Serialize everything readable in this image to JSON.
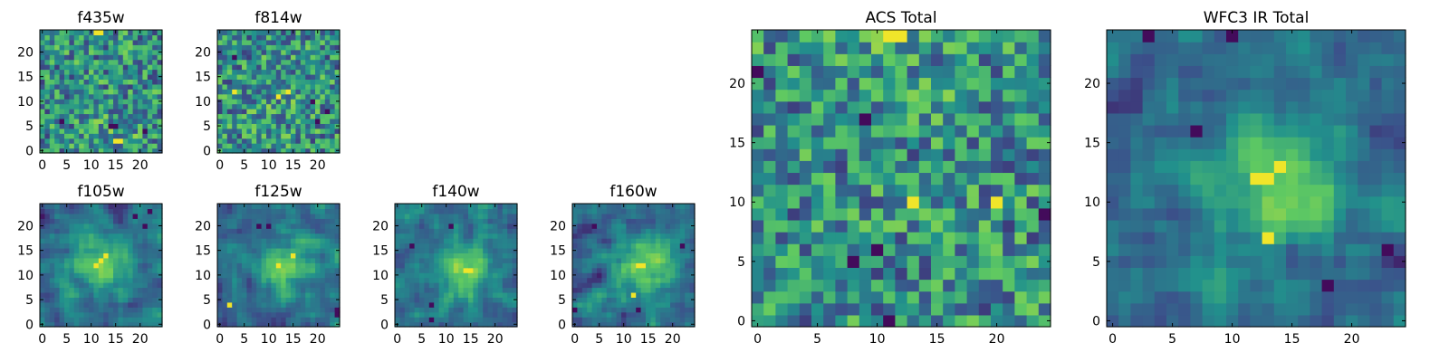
{
  "figure": {
    "background": "#ffffff"
  },
  "colormap": {
    "name": "viridis",
    "stops": [
      "#440154",
      "#3b528b",
      "#21918c",
      "#5ec962",
      "#fde725"
    ]
  },
  "chart_data": [
    {
      "type": "heatmap",
      "title": "f435w",
      "grid_size": [
        25,
        25
      ],
      "xlim": [
        -0.5,
        24.5
      ],
      "ylim": [
        -0.5,
        24.5
      ],
      "xticks": [
        "0",
        "5",
        "10",
        "15",
        "20"
      ],
      "yticks": [
        "0",
        "5",
        "10",
        "15",
        "20"
      ],
      "colormap": "viridis",
      "structure": "noise",
      "peak": [
        15,
        3
      ],
      "notable_bright": [
        [
          11,
          24
        ],
        [
          12,
          24
        ],
        [
          15,
          2
        ],
        [
          16,
          2
        ]
      ],
      "notable_dark": [
        [
          14,
          5
        ],
        [
          15,
          5
        ],
        [
          4,
          6
        ],
        [
          21,
          4
        ]
      ]
    },
    {
      "type": "heatmap",
      "title": "f814w",
      "grid_size": [
        25,
        25
      ],
      "xlim": [
        -0.5,
        24.5
      ],
      "ylim": [
        -0.5,
        24.5
      ],
      "xticks": [
        "0",
        "5",
        "10",
        "15",
        "20"
      ],
      "yticks": [
        "0",
        "5",
        "10",
        "15",
        "20"
      ],
      "colormap": "viridis",
      "structure": "noise",
      "peak": [
        12,
        10
      ],
      "notable_bright": [
        [
          3,
          12
        ],
        [
          12,
          11
        ],
        [
          14,
          12
        ]
      ],
      "notable_dark": [
        [
          20,
          6
        ],
        [
          19,
          10
        ],
        [
          3,
          19
        ],
        [
          22,
          8
        ]
      ]
    },
    {
      "type": "heatmap",
      "title": "f105w",
      "grid_size": [
        25,
        25
      ],
      "xlim": [
        -0.5,
        24.5
      ],
      "ylim": [
        -0.5,
        24.5
      ],
      "xticks": [
        "0",
        "5",
        "10",
        "15",
        "20"
      ],
      "yticks": [
        "0",
        "5",
        "10",
        "15",
        "20"
      ],
      "colormap": "viridis",
      "structure": "smooth_blob",
      "peak": [
        12,
        13
      ],
      "notable_bright": [
        [
          11,
          12
        ],
        [
          12,
          13
        ],
        [
          13,
          14
        ]
      ],
      "notable_dark": [
        [
          19,
          22
        ],
        [
          21,
          20
        ],
        [
          22,
          23
        ]
      ]
    },
    {
      "type": "heatmap",
      "title": "f125w",
      "grid_size": [
        25,
        25
      ],
      "xlim": [
        -0.5,
        24.5
      ],
      "ylim": [
        -0.5,
        24.5
      ],
      "xticks": [
        "0",
        "5",
        "10",
        "15",
        "20"
      ],
      "yticks": [
        "0",
        "5",
        "10",
        "15",
        "20"
      ],
      "colormap": "viridis",
      "structure": "smooth_blob",
      "peak": [
        13,
        12
      ],
      "notable_bright": [
        [
          2,
          4
        ],
        [
          12,
          12
        ],
        [
          15,
          14
        ]
      ],
      "notable_dark": [
        [
          8,
          20
        ],
        [
          10,
          20
        ],
        [
          24,
          2
        ],
        [
          24,
          3
        ]
      ]
    },
    {
      "type": "heatmap",
      "title": "f140w",
      "grid_size": [
        25,
        25
      ],
      "xlim": [
        -0.5,
        24.5
      ],
      "ylim": [
        -0.5,
        24.5
      ],
      "xticks": [
        "0",
        "5",
        "10",
        "15",
        "20"
      ],
      "yticks": [
        "0",
        "5",
        "10",
        "15",
        "20"
      ],
      "colormap": "viridis",
      "structure": "smooth_blob",
      "peak": [
        14,
        11
      ],
      "notable_bright": [
        [
          14,
          11
        ],
        [
          15,
          11
        ]
      ],
      "notable_dark": [
        [
          7,
          4
        ],
        [
          7,
          1
        ],
        [
          3,
          16
        ],
        [
          11,
          20
        ]
      ]
    },
    {
      "type": "heatmap",
      "title": "f160w",
      "grid_size": [
        25,
        25
      ],
      "xlim": [
        -0.5,
        24.5
      ],
      "ylim": [
        -0.5,
        24.5
      ],
      "xticks": [
        "0",
        "5",
        "10",
        "15",
        "20"
      ],
      "yticks": [
        "0",
        "5",
        "10",
        "15",
        "20"
      ],
      "colormap": "viridis",
      "structure": "smooth_blob",
      "peak": [
        14,
        12
      ],
      "notable_bright": [
        [
          13,
          12
        ],
        [
          14,
          12
        ],
        [
          12,
          6
        ]
      ],
      "notable_dark": [
        [
          0,
          3
        ],
        [
          13,
          3
        ],
        [
          4,
          20
        ],
        [
          22,
          16
        ]
      ]
    },
    {
      "type": "heatmap",
      "title": "ACS Total",
      "grid_size": [
        25,
        25
      ],
      "xlim": [
        -0.5,
        24.5
      ],
      "ylim": [
        -0.5,
        24.5
      ],
      "xticks": [
        "0",
        "5",
        "10",
        "15",
        "20"
      ],
      "yticks": [
        "0",
        "5",
        "10",
        "15",
        "20"
      ],
      "colormap": "viridis",
      "structure": "noise",
      "peak": [
        11,
        24
      ],
      "notable_bright": [
        [
          11,
          24
        ],
        [
          12,
          24
        ],
        [
          13,
          10
        ],
        [
          20,
          10
        ]
      ],
      "notable_dark": [
        [
          0,
          21
        ],
        [
          9,
          17
        ],
        [
          11,
          0
        ],
        [
          24,
          9
        ],
        [
          8,
          5
        ],
        [
          10,
          6
        ]
      ]
    },
    {
      "type": "heatmap",
      "title": "WFC3 IR Total",
      "grid_size": [
        25,
        25
      ],
      "xlim": [
        -0.5,
        24.5
      ],
      "ylim": [
        -0.5,
        24.5
      ],
      "xticks": [
        "0",
        "5",
        "10",
        "15",
        "20"
      ],
      "yticks": [
        "0",
        "5",
        "10",
        "15",
        "20"
      ],
      "colormap": "viridis",
      "structure": "smooth_blob",
      "peak": [
        13,
        12
      ],
      "notable_bright": [
        [
          12,
          12
        ],
        [
          13,
          12
        ],
        [
          14,
          13
        ],
        [
          13,
          7
        ]
      ],
      "notable_dark": [
        [
          3,
          24
        ],
        [
          7,
          16
        ],
        [
          10,
          24
        ],
        [
          23,
          6
        ],
        [
          18,
          3
        ]
      ]
    }
  ]
}
